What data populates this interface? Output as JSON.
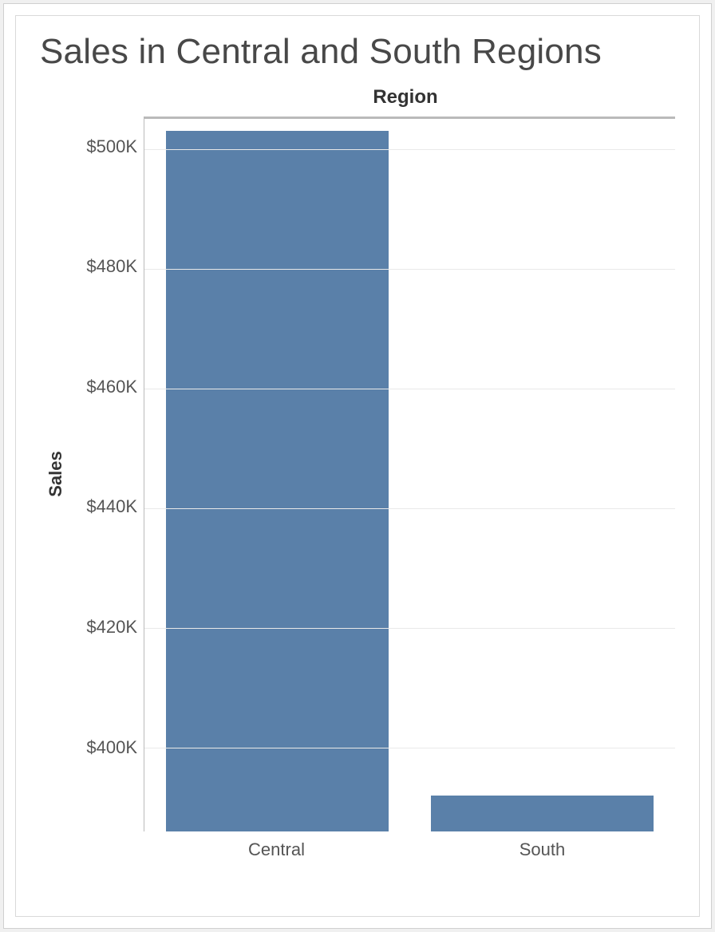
{
  "chart": {
    "type": "bar",
    "title": "Sales in Central and South Regions",
    "title_fontsize": 44,
    "title_color": "#484848",
    "axis_top_label": "Region",
    "y_axis_label": "Sales",
    "axis_label_fontsize": 22,
    "axis_label_color": "#333333",
    "tick_fontsize": 22,
    "tick_color": "#555555",
    "background_color": "#ffffff",
    "border_color": "#d9d9d9",
    "grid_color": "#e9e9e9",
    "axis_line_color": "#bababa",
    "bar_color": "#5a80a9",
    "bar_width_ratio": 0.84,
    "categories": [
      "Central",
      "South"
    ],
    "values": [
      503,
      392
    ],
    "visible_y_min": 386,
    "visible_y_max": 505,
    "y_ticks": [
      {
        "value": 500,
        "label": "$500K"
      },
      {
        "value": 480,
        "label": "$480K"
      },
      {
        "value": 460,
        "label": "$460K"
      },
      {
        "value": 440,
        "label": "$440K"
      },
      {
        "value": 420,
        "label": "$420K"
      },
      {
        "value": 400,
        "label": "$400K"
      }
    ]
  }
}
